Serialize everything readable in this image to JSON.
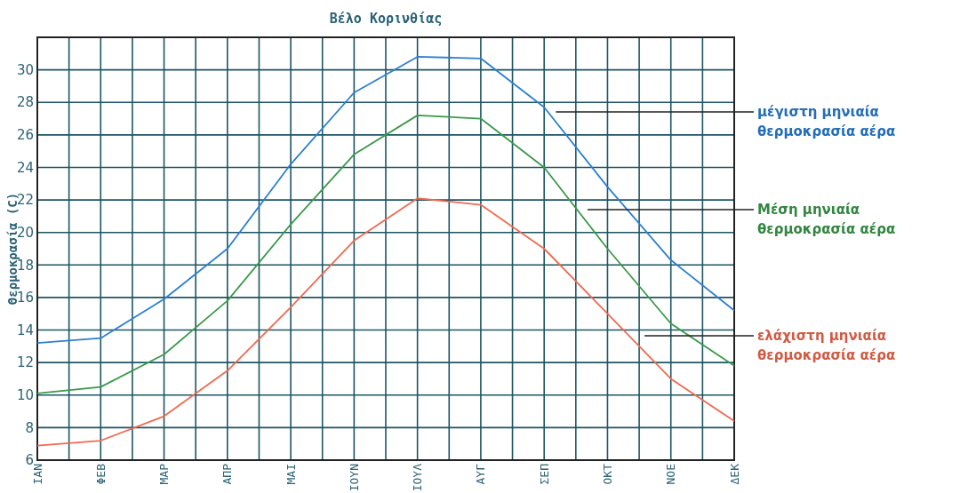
{
  "chart_data": {
    "type": "line",
    "title": "Βέλο Κορινθίας",
    "ylabel": "Θερμοκρασία (C)",
    "categories": [
      "ΙΑΝ",
      "ΦΕΒ",
      "ΜΑΡ",
      "ΑΠΡ",
      "ΜΑΙ",
      "ΙΟΥΝ",
      "ΙΟΥΛ",
      "ΑΥΓ",
      "ΣΕΠ",
      "ΟΚΤ",
      "ΝΟΕ",
      "ΔΕΚ"
    ],
    "series": [
      {
        "name": "μέγιστη μηνιαία θερμοκρασία αέρα",
        "color": "#2a7fd4",
        "values": [
          13.2,
          13.5,
          15.9,
          19.0,
          24.2,
          28.6,
          30.8,
          30.7,
          27.7,
          22.8,
          18.3,
          15.2
        ]
      },
      {
        "name": "Μέση μηνιαία θερμοκρασία αέρα",
        "color": "#3a9a4a",
        "values": [
          10.1,
          10.5,
          12.5,
          15.8,
          20.5,
          24.8,
          27.2,
          27.0,
          24.0,
          19.0,
          14.4,
          11.8
        ]
      },
      {
        "name": "ελάχιστη μηνιαία θερμοκρασία αέρα",
        "color": "#f06a50",
        "values": [
          6.9,
          7.2,
          8.7,
          11.5,
          15.4,
          19.5,
          22.1,
          21.7,
          19.0,
          15.0,
          11.0,
          8.4
        ]
      }
    ],
    "ylim": [
      6,
      32
    ],
    "yticks": [
      6,
      8,
      10,
      12,
      14,
      16,
      18,
      20,
      22,
      24,
      26,
      28,
      30
    ],
    "grid": true,
    "legend": false,
    "marker": "none",
    "line_style": "solid"
  }
}
